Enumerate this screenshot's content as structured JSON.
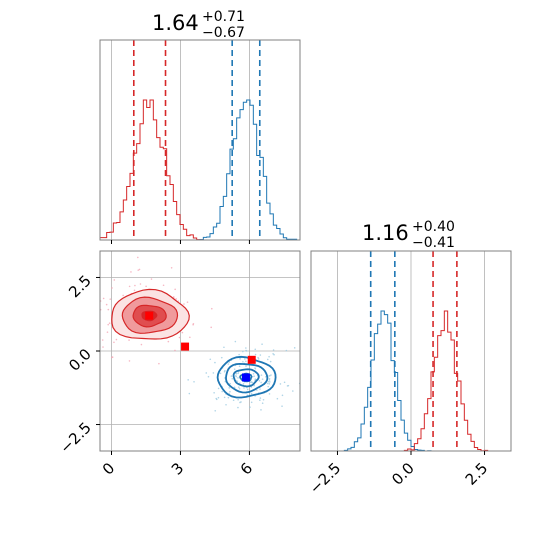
{
  "colors": {
    "red": "#d62728",
    "blue": "#1f77b4",
    "grid": "#b0b0b0",
    "frame": "#808080",
    "truth_red": "#ff0000",
    "truth_blue": "#0000ff"
  },
  "titles": {
    "x_param": {
      "median": "1.64",
      "plus": "+0.71",
      "minus": "−0.67"
    },
    "y_param": {
      "median": "1.16",
      "plus": "+0.40",
      "minus": "−0.41"
    }
  },
  "chart_data": [
    {
      "type": "histogram",
      "panel": "top-left marginal",
      "xlim": [
        -0.5,
        8.2
      ],
      "grid": true,
      "series": [
        {
          "color": "red",
          "center": 1.64,
          "sigma": 0.69,
          "quantile_lines": [
            0.97,
            1.64,
            2.35
          ]
        },
        {
          "color": "blue",
          "center": 5.85,
          "sigma": 0.6,
          "quantile_lines": [
            5.25,
            5.85,
            6.45
          ]
        }
      ]
    },
    {
      "type": "contour",
      "panel": "bottom-left 2D",
      "xlim": [
        -0.5,
        8.2
      ],
      "ylim": [
        -3.4,
        3.4
      ],
      "xticks": [
        "0",
        "3",
        "6"
      ],
      "yticks": [
        "2.5",
        "0.0",
        "−2.5"
      ],
      "xtick_values": [
        0,
        3,
        6
      ],
      "ytick_values": [
        2.5,
        0.0,
        -2.5
      ],
      "grid": true,
      "series": [
        {
          "color": "red",
          "center": [
            1.64,
            1.2
          ],
          "spread": [
            0.8,
            0.4
          ],
          "filled": true
        },
        {
          "color": "blue",
          "center": [
            5.85,
            -0.9
          ],
          "spread": [
            0.6,
            0.32
          ],
          "filled": false
        }
      ],
      "points": [
        {
          "x": 1.64,
          "y": 1.2,
          "color": "truth_red"
        },
        {
          "x": 3.2,
          "y": 0.15,
          "color": "truth_red"
        },
        {
          "x": 6.1,
          "y": -0.3,
          "color": "truth_red"
        },
        {
          "x": 5.85,
          "y": -0.9,
          "color": "truth_blue"
        }
      ]
    },
    {
      "type": "histogram",
      "panel": "bottom-right marginal",
      "xlim": [
        -3.4,
        3.4
      ],
      "xticks": [
        "−2.5",
        "0.0",
        "2.5"
      ],
      "xtick_values": [
        -2.5,
        0.0,
        2.5
      ],
      "grid": true,
      "series": [
        {
          "color": "blue",
          "center": -0.95,
          "sigma": 0.38,
          "quantile_lines": [
            -1.37,
            -0.95,
            -0.55
          ]
        },
        {
          "color": "red",
          "center": 1.16,
          "sigma": 0.4,
          "quantile_lines": [
            0.75,
            1.16,
            1.56
          ]
        }
      ]
    }
  ]
}
